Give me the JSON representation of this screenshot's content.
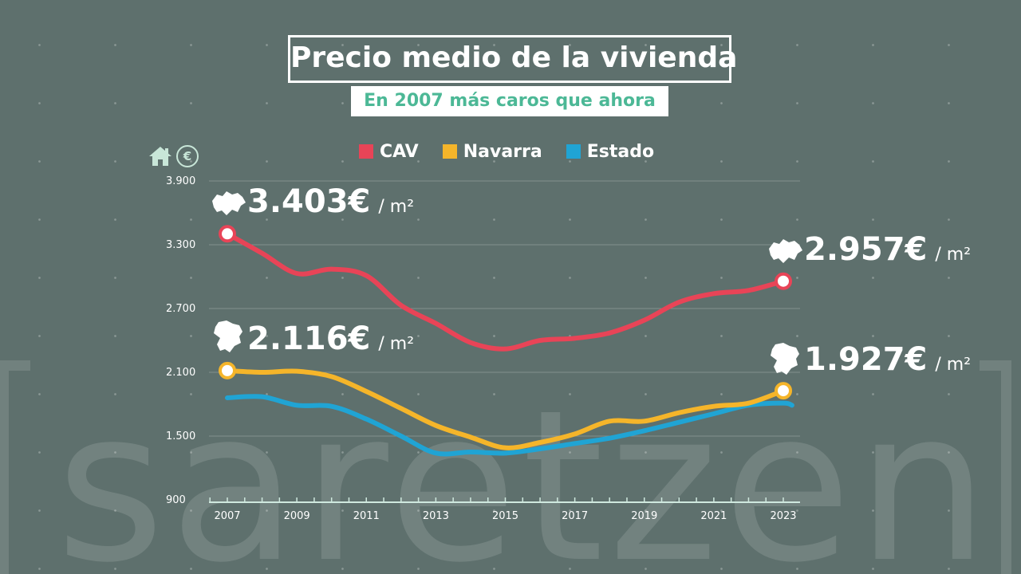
{
  "title": "Precio medio de la vivienda",
  "subtitle": "En 2007 más caros que ahora",
  "watermark": "saretzen",
  "icons": {
    "house": "house-icon",
    "euro": "euro-icon",
    "euro_symbol": "€"
  },
  "colors": {
    "CAV": "#e84457",
    "Navarra": "#f5b52a",
    "Estado": "#20a4d4",
    "background": "#5e706d"
  },
  "chart_data": {
    "type": "line",
    "title": "Precio medio de la vivienda",
    "subtitle": "En 2007 más caros que ahora",
    "xlabel": "",
    "ylabel": "€ / m²",
    "ylim": [
      900,
      3900
    ],
    "yticks": [
      900,
      1500,
      2100,
      2700,
      3300,
      3900
    ],
    "ytick_labels": [
      "900",
      "1.500",
      "2.100",
      "2.700",
      "3.300",
      "3.900"
    ],
    "xlim": [
      2007,
      2023.25
    ],
    "xticks": [
      2007,
      2009,
      2011,
      2013,
      2015,
      2017,
      2019,
      2021,
      2023
    ],
    "xtick_labels": [
      "2007",
      "2009",
      "2011",
      "2013",
      "2015",
      "2017",
      "2019",
      "2021",
      "2023"
    ],
    "grid": true,
    "legend_position": "top",
    "series": [
      {
        "name": "CAV",
        "x": [
          2007,
          2008,
          2009,
          2010,
          2011,
          2012,
          2013,
          2014,
          2015,
          2016,
          2017,
          2018,
          2019,
          2020,
          2021,
          2022,
          2023
        ],
        "values": [
          3403,
          3220,
          3030,
          3070,
          3010,
          2730,
          2560,
          2380,
          2320,
          2400,
          2420,
          2470,
          2590,
          2760,
          2840,
          2870,
          2957
        ]
      },
      {
        "name": "Navarra",
        "x": [
          2007,
          2008,
          2009,
          2010,
          2011,
          2012,
          2013,
          2014,
          2015,
          2016,
          2017,
          2018,
          2019,
          2020,
          2021,
          2022,
          2023
        ],
        "values": [
          2116,
          2100,
          2110,
          2060,
          1920,
          1760,
          1600,
          1490,
          1390,
          1440,
          1520,
          1640,
          1640,
          1720,
          1780,
          1810,
          1927
        ]
      },
      {
        "name": "Estado",
        "x": [
          2007,
          2008,
          2009,
          2010,
          2011,
          2012,
          2013,
          2014,
          2015,
          2016,
          2017,
          2018,
          2019,
          2020,
          2021,
          2022,
          2023,
          2023.25
        ],
        "values": [
          1860,
          1870,
          1790,
          1780,
          1660,
          1500,
          1340,
          1350,
          1340,
          1380,
          1430,
          1480,
          1550,
          1630,
          1710,
          1790,
          1810,
          1790
        ]
      }
    ],
    "annotations": [
      {
        "series": "CAV",
        "year": 2007,
        "value": 3403,
        "label": "3.403€",
        "unit": "/ m²"
      },
      {
        "series": "CAV",
        "year": 2023,
        "value": 2957,
        "label": "2.957€",
        "unit": "/ m²"
      },
      {
        "series": "Navarra",
        "year": 2007,
        "value": 2116,
        "label": "2.116€",
        "unit": "/ m²"
      },
      {
        "series": "Navarra",
        "year": 2023,
        "value": 1927,
        "label": "1.927€",
        "unit": "/ m²"
      }
    ]
  }
}
